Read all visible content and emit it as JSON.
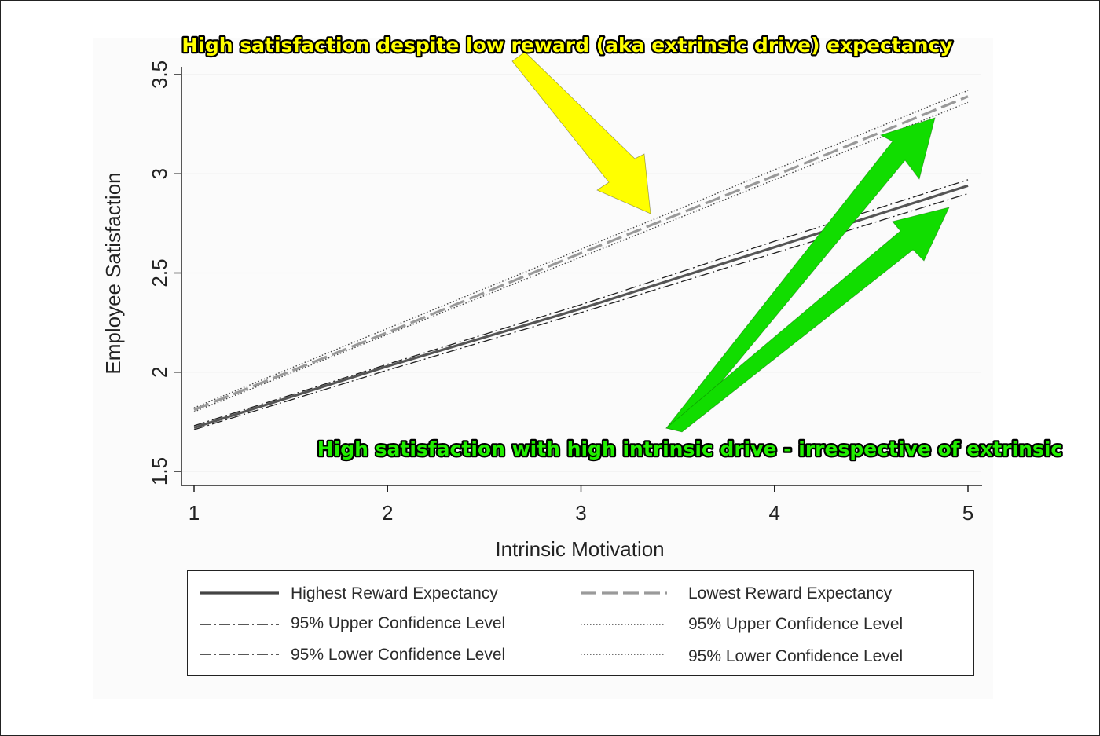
{
  "chart_data": {
    "type": "line",
    "xlabel": "Intrinsic Motivation",
    "ylabel": "Employee Satisfaction",
    "xlim": [
      1,
      5
    ],
    "ylim": [
      1.5,
      3.5
    ],
    "xticks": [
      1,
      2,
      3,
      4,
      5
    ],
    "yticks": [
      1.5,
      2,
      2.5,
      3,
      3.5
    ],
    "ytick_labels": [
      "1.5",
      "2",
      "2.5",
      "3",
      "3.5"
    ],
    "grid": true,
    "legend_position": "bottom",
    "x": [
      1,
      2,
      3,
      4,
      5
    ],
    "series": [
      {
        "name": "Highest Reward Expectancy",
        "style": "solid",
        "color": "#555555",
        "values": [
          1.72,
          2.03,
          2.32,
          2.63,
          2.94
        ]
      },
      {
        "name": "95% Upper Confidence Level",
        "style": "dashdot",
        "color": "#222222",
        "values": [
          1.73,
          2.04,
          2.34,
          2.66,
          2.97
        ]
      },
      {
        "name": "95% Lower Confidence Level",
        "style": "dashdot",
        "color": "#222222",
        "values": [
          1.71,
          2.01,
          2.3,
          2.6,
          2.9
        ]
      },
      {
        "name": "Lowest Reward Expectancy",
        "style": "dashed",
        "color": "#999999",
        "values": [
          1.81,
          2.2,
          2.6,
          2.99,
          3.39
        ]
      },
      {
        "name": "95% Upper Confidence Level",
        "style": "dotted",
        "color": "#444444",
        "values": [
          1.82,
          2.22,
          2.62,
          3.02,
          3.42
        ]
      },
      {
        "name": "95% Lower Confidence Level",
        "style": "dotted",
        "color": "#444444",
        "values": [
          1.8,
          2.19,
          2.58,
          2.97,
          3.36
        ]
      }
    ],
    "annotations": [
      {
        "text": "High satisfaction despite low reward (aka extrinsic drive) expectancy",
        "color": "#ffff00",
        "arrow_color": "#ffff00"
      },
      {
        "text": "High satisfaction with high intrinsic drive - irrespective of extrinsic",
        "color": "#22ee00",
        "arrow_color": "#11dd00"
      }
    ]
  },
  "legend": {
    "items": [
      {
        "label": "Highest Reward Expectancy",
        "style": "solid"
      },
      {
        "label": "Lowest Reward Expectancy",
        "style": "dashed"
      },
      {
        "label": "95% Upper Confidence Level",
        "style": "dashdot"
      },
      {
        "label": "95% Upper Confidence Level",
        "style": "dotted"
      },
      {
        "label": "95% Lower Confidence Level",
        "style": "dashdot"
      },
      {
        "label": "95% Lower Confidence Level",
        "style": "dotted"
      }
    ]
  }
}
